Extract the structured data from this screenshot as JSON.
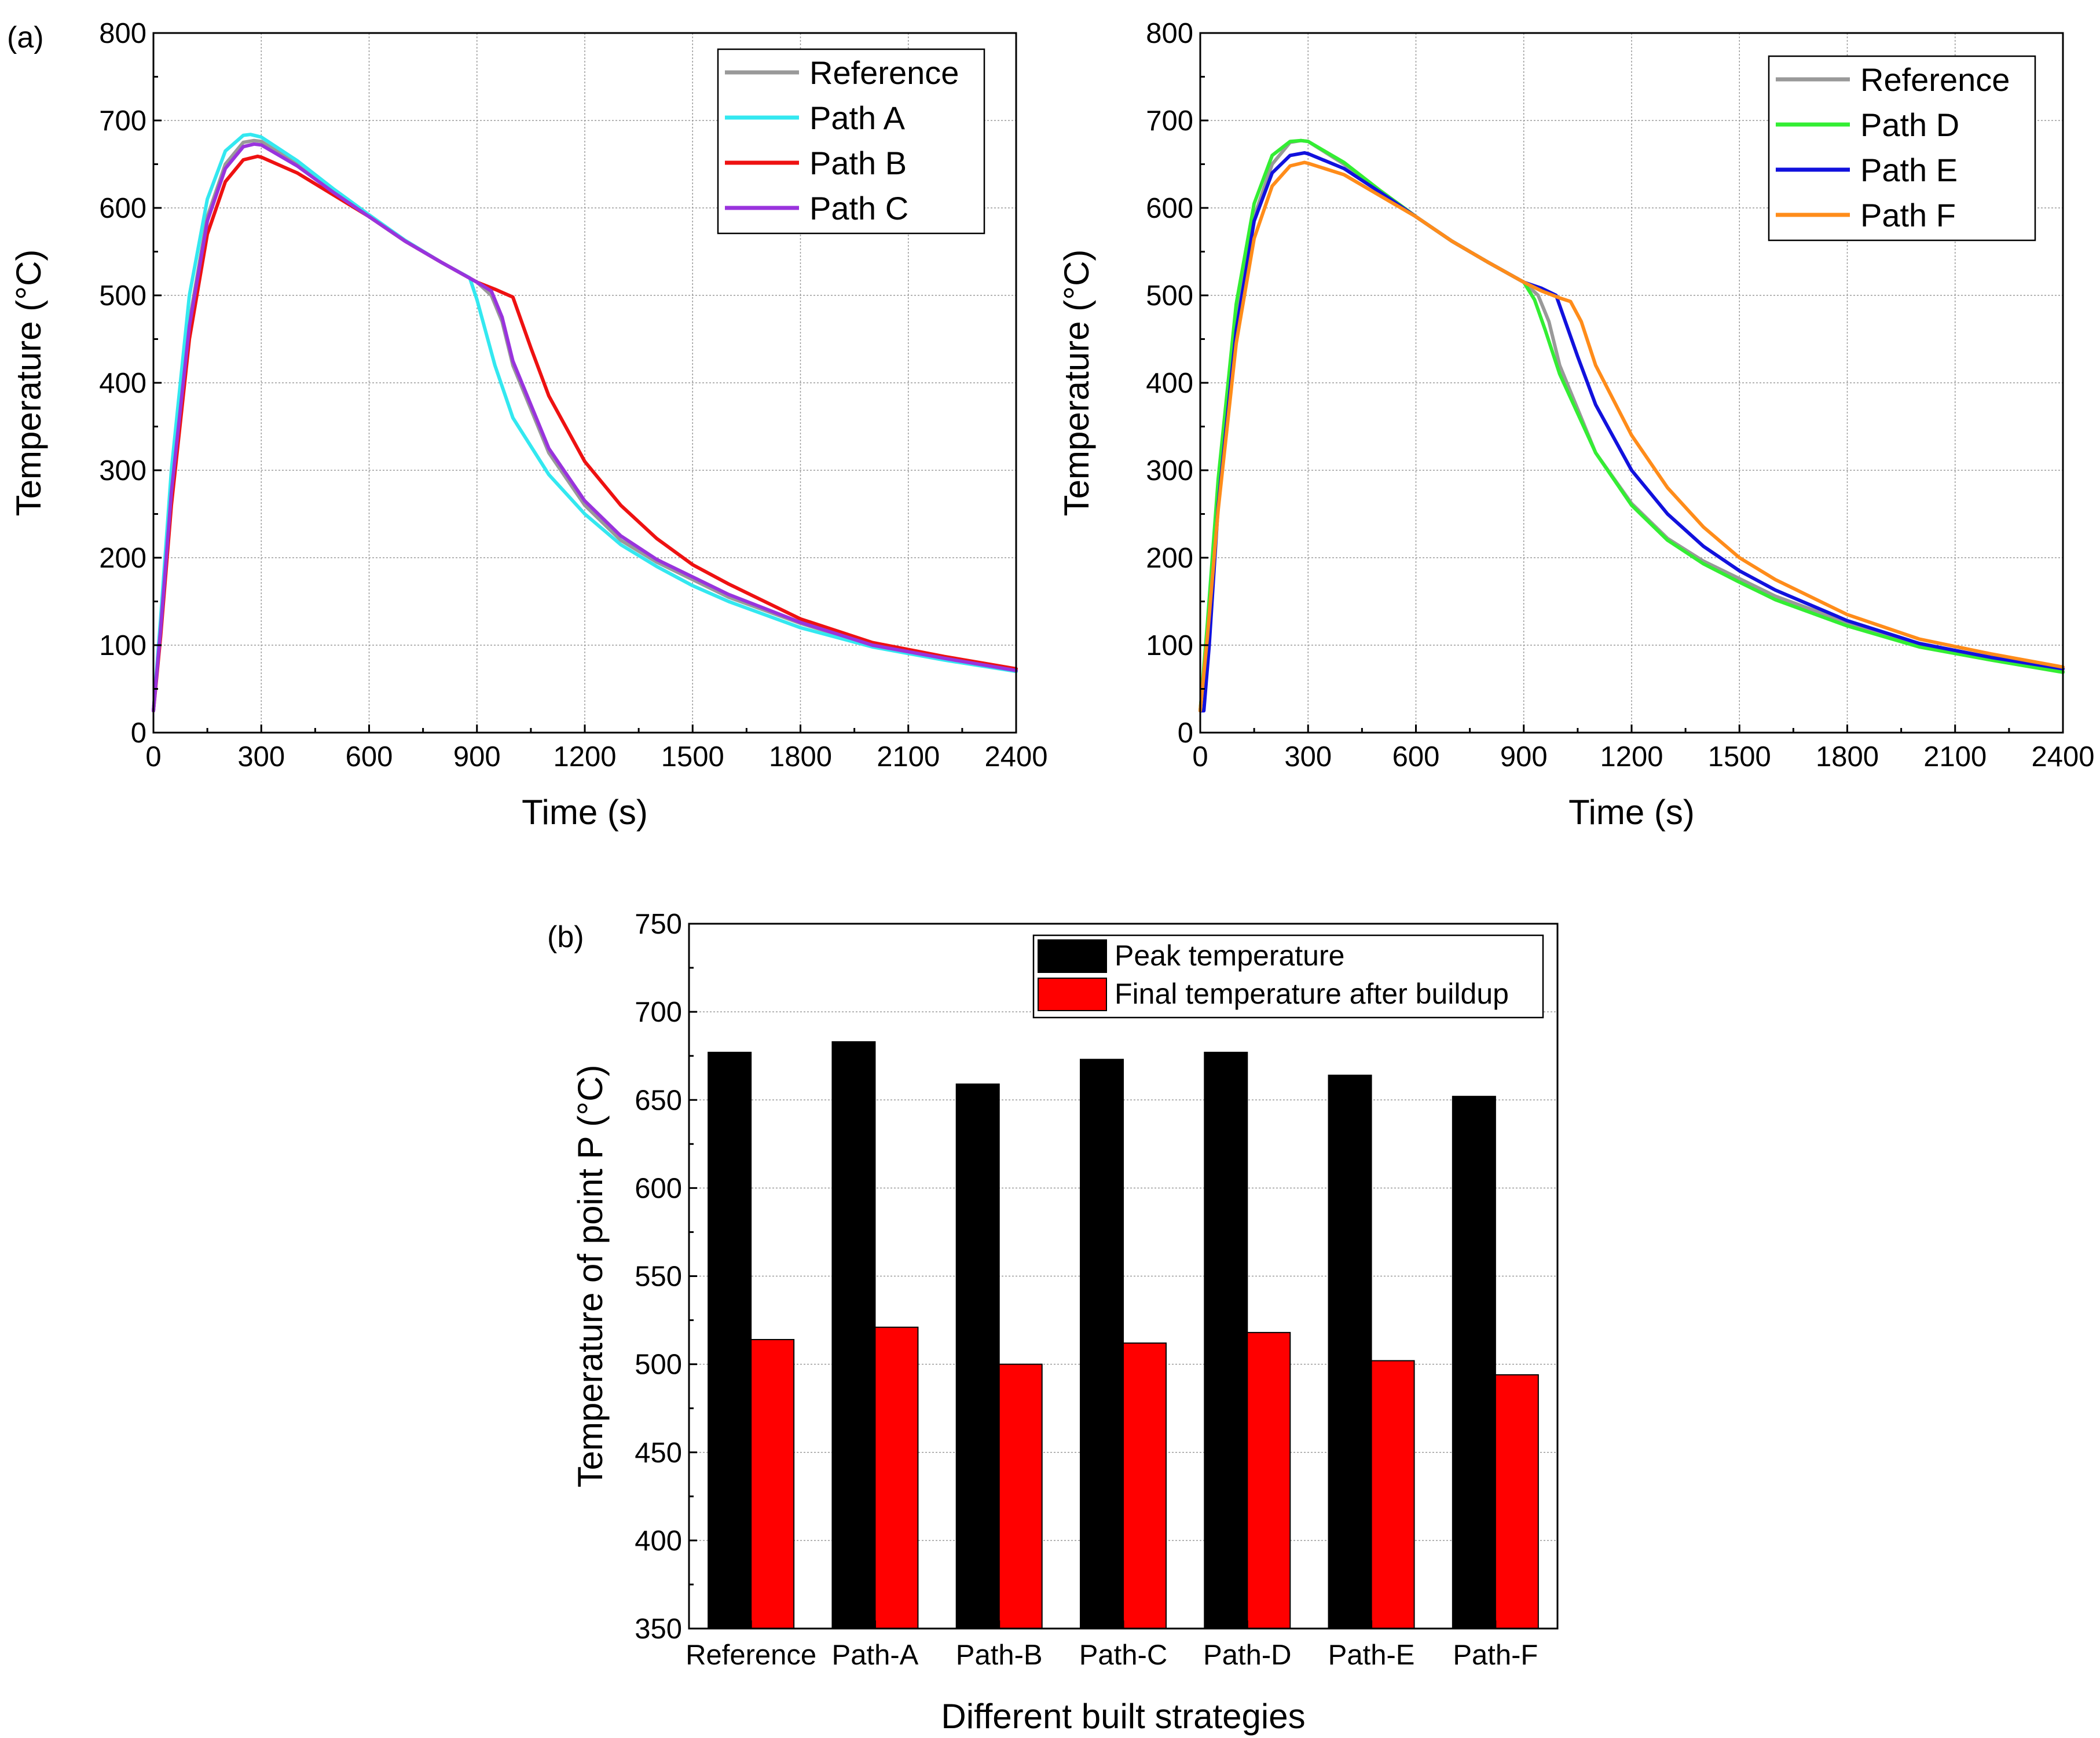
{
  "chart_data": [
    {
      "id": "a-left",
      "type": "line",
      "panel_label": "(a)",
      "xlabel": "Time (s)",
      "ylabel": "Temperature (°C)",
      "xlim": [
        0,
        2400
      ],
      "ylim": [
        0,
        800
      ],
      "xticks": [
        0,
        300,
        600,
        900,
        1200,
        1500,
        1800,
        2100,
        2400
      ],
      "yticks": [
        0,
        100,
        200,
        300,
        400,
        500,
        600,
        700,
        800
      ],
      "grid": true,
      "legend_position": "top-right",
      "series": [
        {
          "name": "Reference",
          "color": "#999999",
          "x": [
            0,
            20,
            50,
            100,
            150,
            200,
            250,
            280,
            300,
            400,
            500,
            600,
            700,
            800,
            900,
            940,
            970,
            1000,
            1100,
            1200,
            1300,
            1400,
            1500,
            1600,
            1800,
            2000,
            2200,
            2400
          ],
          "y": [
            25,
            120,
            280,
            470,
            590,
            650,
            675,
            677,
            676,
            650,
            620,
            590,
            562,
            538,
            515,
            500,
            470,
            420,
            320,
            260,
            220,
            195,
            175,
            155,
            125,
            100,
            85,
            70
          ]
        },
        {
          "name": "Path A",
          "color": "#33e8f0",
          "x": [
            0,
            20,
            50,
            100,
            150,
            200,
            250,
            270,
            300,
            400,
            500,
            600,
            700,
            800,
            880,
            900,
            950,
            1000,
            1100,
            1200,
            1300,
            1400,
            1500,
            1600,
            1800,
            2000,
            2200,
            2400
          ],
          "y": [
            25,
            130,
            300,
            500,
            610,
            665,
            683,
            684,
            681,
            654,
            622,
            592,
            563,
            538,
            520,
            495,
            420,
            360,
            295,
            250,
            215,
            190,
            168,
            150,
            120,
            98,
            83,
            70
          ]
        },
        {
          "name": "Path B",
          "color": "#ee1111",
          "x": [
            0,
            20,
            50,
            100,
            150,
            200,
            250,
            290,
            300,
            400,
            500,
            600,
            700,
            800,
            900,
            950,
            1000,
            1050,
            1100,
            1200,
            1300,
            1400,
            1500,
            1600,
            1800,
            2000,
            2200,
            2400
          ],
          "y": [
            25,
            110,
            260,
            450,
            570,
            630,
            655,
            659,
            658,
            640,
            615,
            590,
            562,
            538,
            515,
            507,
            498,
            440,
            385,
            310,
            260,
            222,
            192,
            170,
            130,
            103,
            87,
            73
          ]
        },
        {
          "name": "Path C",
          "color": "#9933dd",
          "x": [
            0,
            20,
            50,
            100,
            150,
            200,
            250,
            280,
            300,
            400,
            500,
            600,
            700,
            800,
            900,
            940,
            970,
            1000,
            1100,
            1200,
            1300,
            1400,
            1500,
            1600,
            1800,
            2000,
            2200,
            2400
          ],
          "y": [
            25,
            118,
            275,
            465,
            585,
            645,
            670,
            673,
            672,
            648,
            618,
            590,
            562,
            538,
            515,
            505,
            475,
            425,
            325,
            265,
            225,
            198,
            178,
            158,
            126,
            100,
            85,
            71
          ]
        }
      ]
    },
    {
      "id": "a-right",
      "type": "line",
      "panel_label": "",
      "xlabel": "Time (s)",
      "ylabel": "Temperature (°C)",
      "xlim": [
        0,
        2400
      ],
      "ylim": [
        0,
        800
      ],
      "xticks": [
        0,
        300,
        600,
        900,
        1200,
        1500,
        1800,
        2100,
        2400
      ],
      "yticks": [
        0,
        100,
        200,
        300,
        400,
        500,
        600,
        700,
        800
      ],
      "grid": true,
      "legend_position": "top-right",
      "series": [
        {
          "name": "Reference",
          "color": "#999999",
          "x": [
            0,
            20,
            50,
            100,
            150,
            200,
            250,
            280,
            300,
            400,
            500,
            600,
            700,
            800,
            900,
            940,
            970,
            1000,
            1100,
            1200,
            1300,
            1400,
            1500,
            1600,
            1800,
            2000,
            2200,
            2400
          ],
          "y": [
            25,
            120,
            280,
            470,
            590,
            650,
            675,
            677,
            676,
            650,
            620,
            590,
            562,
            538,
            515,
            500,
            470,
            420,
            320,
            262,
            222,
            196,
            176,
            156,
            126,
            100,
            85,
            70
          ]
        },
        {
          "name": "Path D",
          "color": "#33ee33",
          "x": [
            0,
            20,
            50,
            100,
            150,
            200,
            250,
            280,
            300,
            400,
            500,
            600,
            700,
            800,
            900,
            930,
            960,
            1000,
            1100,
            1200,
            1300,
            1400,
            1500,
            1600,
            1800,
            2000,
            2200,
            2400
          ],
          "y": [
            25,
            125,
            290,
            490,
            605,
            660,
            676,
            677,
            676,
            652,
            620,
            590,
            562,
            538,
            515,
            495,
            460,
            410,
            320,
            260,
            220,
            193,
            172,
            152,
            122,
            98,
            83,
            69
          ]
        },
        {
          "name": "Path E",
          "color": "#1111dd",
          "x": [
            0,
            10,
            25,
            50,
            100,
            150,
            200,
            250,
            290,
            300,
            400,
            500,
            600,
            700,
            800,
            900,
            950,
            990,
            1050,
            1100,
            1200,
            1300,
            1400,
            1500,
            1600,
            1800,
            2000,
            2200,
            2400
          ],
          "y": [
            25,
            25,
            100,
            260,
            460,
            585,
            640,
            660,
            663,
            662,
            645,
            618,
            590,
            562,
            538,
            515,
            508,
            500,
            430,
            375,
            300,
            250,
            213,
            185,
            163,
            128,
            102,
            86,
            73
          ]
        },
        {
          "name": "Path F",
          "color": "#ff8c1a",
          "x": [
            0,
            20,
            50,
            100,
            150,
            200,
            250,
            290,
            300,
            400,
            500,
            600,
            700,
            800,
            900,
            950,
            1000,
            1030,
            1060,
            1100,
            1200,
            1300,
            1400,
            1500,
            1600,
            1800,
            2000,
            2200,
            2400
          ],
          "y": [
            25,
            110,
            255,
            445,
            565,
            625,
            648,
            652,
            651,
            638,
            614,
            590,
            562,
            538,
            515,
            505,
            497,
            493,
            470,
            420,
            340,
            280,
            235,
            200,
            175,
            135,
            107,
            90,
            75
          ]
        }
      ]
    },
    {
      "id": "b",
      "type": "bar",
      "panel_label": "(b)",
      "xlabel": "Different built strategies",
      "ylabel": "Temperature of point P (°C)",
      "ylim": [
        350,
        750
      ],
      "yticks": [
        350,
        400,
        450,
        500,
        550,
        600,
        650,
        700,
        750
      ],
      "grid": true,
      "legend_position": "top-right",
      "categories": [
        "Reference",
        "Path-A",
        "Path-B",
        "Path-C",
        "Path-D",
        "Path-E",
        "Path-F"
      ],
      "series": [
        {
          "name": "Peak temperature",
          "color": "#000000",
          "values": [
            677,
            683,
            659,
            673,
            677,
            664,
            652
          ]
        },
        {
          "name": "Final temperature after buildup",
          "color": "#ff0000",
          "values": [
            514,
            521,
            500,
            512,
            518,
            502,
            494
          ]
        }
      ]
    }
  ]
}
